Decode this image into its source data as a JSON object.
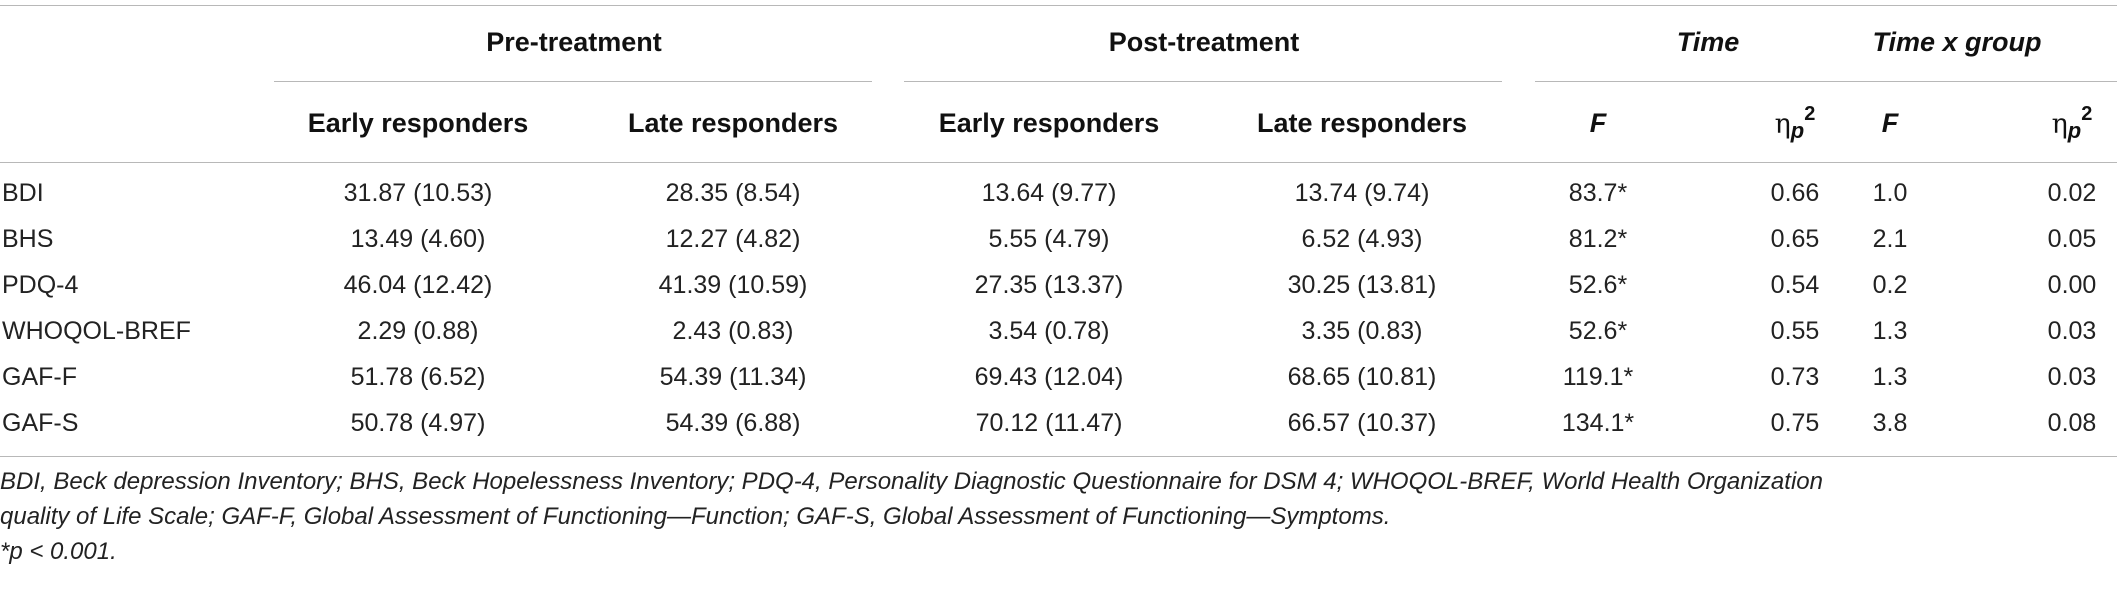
{
  "table": {
    "group_headers": {
      "pre": "Pre-treatment",
      "post": "Post-treatment",
      "time": "Time",
      "timexgroup": "Time x group"
    },
    "sub_headers": {
      "pre_early": "Early responders",
      "pre_late": "Late responders",
      "post_early": "Early responders",
      "post_late": "Late responders",
      "time_f": "F",
      "time_eta_symbol": "η",
      "time_eta_sub": "p",
      "time_eta_sup": "2",
      "tg_f": "F",
      "tg_eta_symbol": "η",
      "tg_eta_sub": "p",
      "tg_eta_sup": "2"
    },
    "rows": [
      {
        "label": "BDI",
        "pre_early": "31.87 (10.53)",
        "pre_late": "28.35 (8.54)",
        "post_early": "13.64 (9.77)",
        "post_late": "13.74 (9.74)",
        "time_f": "83.7*",
        "time_eta": "0.66",
        "tg_f": "1.0",
        "tg_eta": "0.02"
      },
      {
        "label": "BHS",
        "pre_early": "13.49 (4.60)",
        "pre_late": "12.27 (4.82)",
        "post_early": "5.55 (4.79)",
        "post_late": "6.52 (4.93)",
        "time_f": "81.2*",
        "time_eta": "0.65",
        "tg_f": "2.1",
        "tg_eta": "0.05"
      },
      {
        "label": "PDQ-4",
        "pre_early": "46.04 (12.42)",
        "pre_late": "41.39 (10.59)",
        "post_early": "27.35 (13.37)",
        "post_late": "30.25 (13.81)",
        "time_f": "52.6*",
        "time_eta": "0.54",
        "tg_f": "0.2",
        "tg_eta": "0.00"
      },
      {
        "label": "WHOQOL-BREF",
        "pre_early": "2.29 (0.88)",
        "pre_late": "2.43 (0.83)",
        "post_early": "3.54 (0.78)",
        "post_late": "3.35 (0.83)",
        "time_f": "52.6*",
        "time_eta": "0.55",
        "tg_f": "1.3",
        "tg_eta": "0.03"
      },
      {
        "label": "GAF-F",
        "pre_early": "51.78 (6.52)",
        "pre_late": "54.39 (11.34)",
        "post_early": "69.43 (12.04)",
        "post_late": "68.65 (10.81)",
        "time_f": "119.1*",
        "time_eta": "0.73",
        "tg_f": "1.3",
        "tg_eta": "0.03"
      },
      {
        "label": "GAF-S",
        "pre_early": "50.78 (4.97)",
        "pre_late": "54.39 (6.88)",
        "post_early": "70.12 (11.47)",
        "post_late": "66.57 (10.37)",
        "time_f": "134.1*",
        "time_eta": "0.75",
        "tg_f": "3.8",
        "tg_eta": "0.08"
      }
    ]
  },
  "footnote": {
    "line1": "BDI, Beck depression Inventory; BHS, Beck Hopelessness Inventory; PDQ-4, Personality Diagnostic Questionnaire for DSM 4; WHOQOL-BREF, World Health Organization",
    "line2": "quality of Life Scale; GAF-F, Global Assessment of Functioning—Function; GAF-S, Global Assessment of Functioning—Symptoms.",
    "line3": "*p < 0.001."
  }
}
